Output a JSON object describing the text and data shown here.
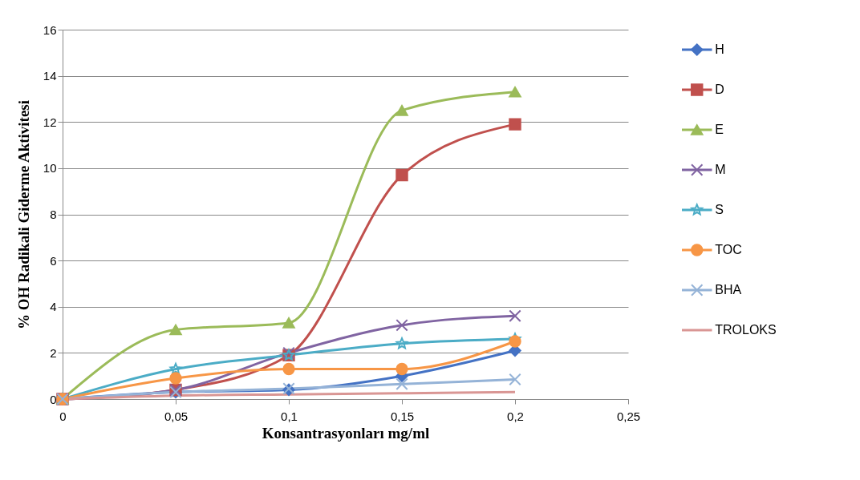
{
  "chart_data": {
    "type": "line",
    "xlabel": "Konsantrasyonları mg/ml",
    "ylabel": "% OH Radikali Giderme Aktivitesi",
    "x": [
      0,
      0.05,
      0.1,
      0.15,
      0.2
    ],
    "series": [
      {
        "name": "H",
        "color": "#4472c4",
        "marker": "diamond",
        "values": [
          0,
          0.3,
          0.4,
          1.0,
          2.1
        ]
      },
      {
        "name": "D",
        "color": "#c0504d",
        "marker": "square",
        "values": [
          0,
          0.4,
          1.9,
          9.7,
          11.9
        ]
      },
      {
        "name": "E",
        "color": "#9bbb59",
        "marker": "triangle",
        "values": [
          0,
          3.0,
          3.3,
          12.5,
          13.3
        ]
      },
      {
        "name": "M",
        "color": "#8064a2",
        "marker": "cross",
        "values": [
          0,
          0.4,
          2.0,
          3.2,
          3.6
        ]
      },
      {
        "name": "S",
        "color": "#4bacc6",
        "marker": "star",
        "values": [
          0,
          1.3,
          1.9,
          2.4,
          2.6
        ]
      },
      {
        "name": "TOC",
        "color": "#f79646",
        "marker": "circle",
        "values": [
          0,
          0.9,
          1.3,
          1.3,
          2.5
        ]
      },
      {
        "name": "BHA",
        "color": "#95b3d7",
        "marker": "cross",
        "values": [
          0,
          0.3,
          0.45,
          0.65,
          0.85
        ]
      },
      {
        "name": "TROLOKS",
        "color": "#d99694",
        "marker": "none",
        "values": [
          0,
          0.15,
          0.2,
          0.25,
          0.3
        ]
      }
    ],
    "xlim": [
      0,
      0.25
    ],
    "xticks": [
      0,
      {
        "value": 0.05,
        "label": "0,05"
      },
      {
        "value": 0.1,
        "label": "0,1"
      },
      {
        "value": 0.15,
        "label": "0,15"
      },
      {
        "value": 0.2,
        "label": "0,2"
      },
      {
        "value": 0.25,
        "label": "0,25"
      }
    ],
    "ylim": [
      0,
      16
    ],
    "yticks": [
      0,
      2,
      4,
      6,
      8,
      10,
      12,
      14,
      16
    ],
    "grid": "y",
    "legend": "right",
    "line_style": "solid"
  }
}
